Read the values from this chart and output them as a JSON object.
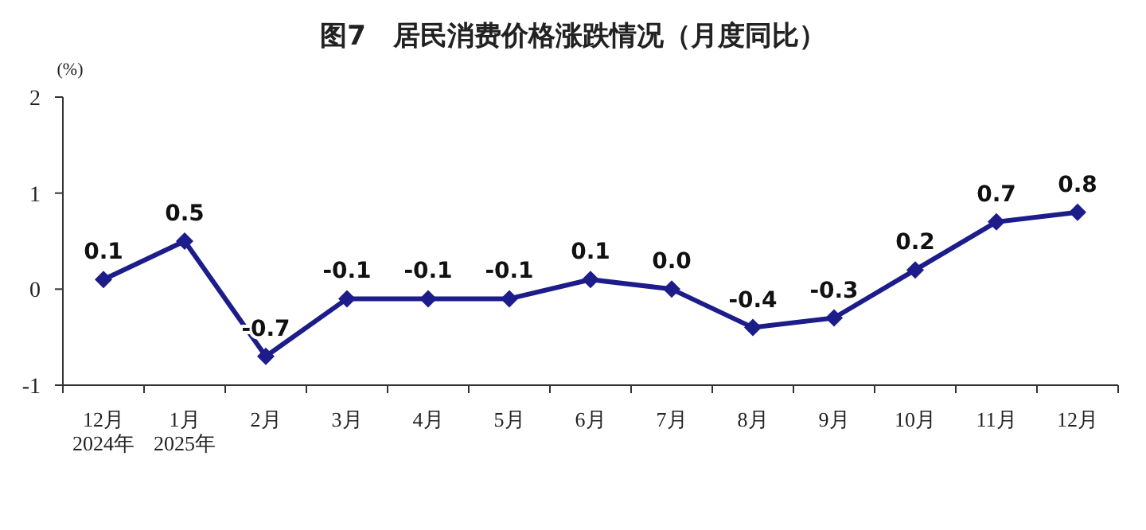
{
  "chart_data": {
    "type": "line",
    "title": "图7　居民消费价格涨跌情况（月度同比）",
    "ylabel": "(%)",
    "categories": [
      "12月\n2024年",
      "1月\n2025年",
      "2月",
      "3月",
      "4月",
      "5月",
      "6月",
      "7月",
      "8月",
      "9月",
      "10月",
      "11月",
      "12月"
    ],
    "series": [
      {
        "color": "#1c1c8a",
        "values": [
          0.1,
          0.5,
          -0.7,
          -0.1,
          -0.1,
          -0.1,
          0.1,
          0.0,
          -0.4,
          -0.3,
          0.2,
          0.7,
          0.8
        ],
        "value_labels": [
          "0.1",
          "0.5",
          "-0.7",
          "-0.1",
          "-0.1",
          "-0.1",
          "0.1",
          "0.0",
          "-0.4",
          "-0.3",
          "0.2",
          "0.7",
          "0.8"
        ]
      }
    ],
    "ylim": [
      -1,
      2
    ],
    "yticks": [
      -1,
      0,
      1,
      2
    ],
    "marker": "diamond",
    "line_style": "solid"
  }
}
